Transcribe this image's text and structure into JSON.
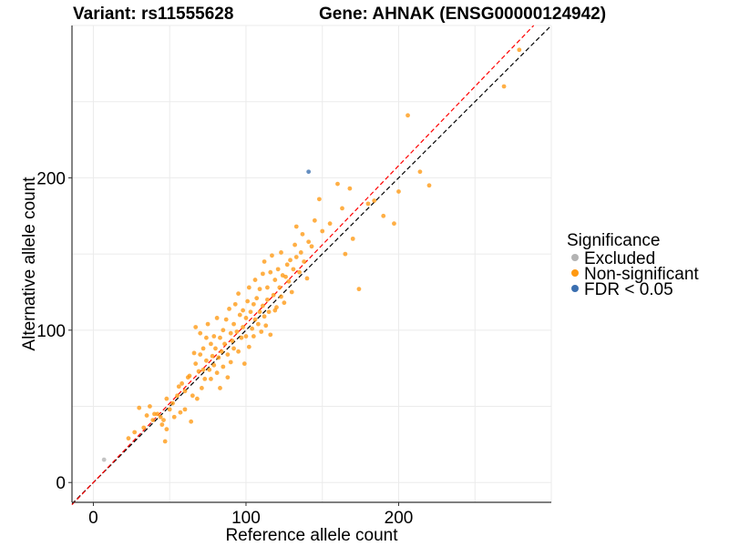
{
  "chart_data": {
    "type": "scatter",
    "title_left": "Variant: rs11555628",
    "title_right": "Gene: AHNAK (ENSG00000124942)",
    "xlabel": "Reference allele count",
    "ylabel": "Alternative allele count",
    "xlim": [
      -14,
      300
    ],
    "ylim": [
      -13,
      300
    ],
    "xticks": [
      0,
      100,
      200
    ],
    "yticks": [
      0,
      100,
      200
    ],
    "grid": true,
    "reference_lines": [
      {
        "name": "identity",
        "slope": 1.0,
        "color": "#000000",
        "style": "dashed"
      },
      {
        "name": "fit",
        "slope": 1.04,
        "color": "#ff0000",
        "style": "dashed"
      }
    ],
    "legend": {
      "title": "Significance",
      "position": "right",
      "entries": [
        {
          "label": "Excluded",
          "color": "#b3b3b3"
        },
        {
          "label": "Non-significant",
          "color": "#ff9911"
        },
        {
          "label": "FDR < 0.05",
          "color": "#3b6fb0"
        }
      ]
    },
    "series": [
      {
        "name": "Excluded",
        "color": "#b3b3b3",
        "points": [
          [
            7,
            15
          ]
        ]
      },
      {
        "name": "FDR < 0.05",
        "color": "#3b6fb0",
        "points": [
          [
            141,
            204
          ]
        ]
      },
      {
        "name": "Non-significant",
        "color": "#ff9911",
        "points": [
          [
            23,
            29
          ],
          [
            27,
            33
          ],
          [
            30,
            49
          ],
          [
            33,
            36
          ],
          [
            35,
            44
          ],
          [
            37,
            50
          ],
          [
            39,
            41
          ],
          [
            40,
            45
          ],
          [
            42,
            45
          ],
          [
            44,
            43
          ],
          [
            45,
            38
          ],
          [
            46,
            41
          ],
          [
            47,
            27
          ],
          [
            48,
            35
          ],
          [
            48,
            55
          ],
          [
            50,
            48
          ],
          [
            52,
            52
          ],
          [
            53,
            43
          ],
          [
            55,
            57
          ],
          [
            56,
            63
          ],
          [
            57,
            46
          ],
          [
            58,
            65
          ],
          [
            60,
            48
          ],
          [
            60,
            60
          ],
          [
            62,
            69
          ],
          [
            63,
            70
          ],
          [
            64,
            40
          ],
          [
            65,
            57
          ],
          [
            66,
            85
          ],
          [
            67,
            78
          ],
          [
            67,
            102
          ],
          [
            68,
            55
          ],
          [
            69,
            73
          ],
          [
            70,
            84
          ],
          [
            70,
            98
          ],
          [
            71,
            62
          ],
          [
            72,
            74
          ],
          [
            72,
            88
          ],
          [
            73,
            68
          ],
          [
            74,
            80
          ],
          [
            74,
            95
          ],
          [
            75,
            104
          ],
          [
            76,
            74
          ],
          [
            77,
            91
          ],
          [
            77,
            68
          ],
          [
            78,
            83
          ],
          [
            79,
            77
          ],
          [
            79,
            96
          ],
          [
            80,
            88
          ],
          [
            81,
            72
          ],
          [
            81,
            108
          ],
          [
            82,
            82
          ],
          [
            83,
            95
          ],
          [
            83,
            62
          ],
          [
            84,
            86
          ],
          [
            85,
            76
          ],
          [
            85,
            100
          ],
          [
            86,
            91
          ],
          [
            87,
            107
          ],
          [
            88,
            84
          ],
          [
            88,
            69
          ],
          [
            89,
            114
          ],
          [
            90,
            98
          ],
          [
            90,
            79
          ],
          [
            91,
            93
          ],
          [
            92,
            88
          ],
          [
            92,
            104
          ],
          [
            93,
            117
          ],
          [
            94,
            99
          ],
          [
            95,
            86
          ],
          [
            95,
            124
          ],
          [
            96,
            110
          ],
          [
            97,
            95
          ],
          [
            98,
            102
          ],
          [
            98,
            113
          ],
          [
            99,
            78
          ],
          [
            100,
            108
          ],
          [
            100,
            96
          ],
          [
            101,
            119
          ],
          [
            102,
            89
          ],
          [
            102,
            128
          ],
          [
            103,
            112
          ],
          [
            104,
            101
          ],
          [
            105,
            117
          ],
          [
            105,
            96
          ],
          [
            106,
            107
          ],
          [
            106,
            133
          ],
          [
            107,
            121
          ],
          [
            108,
            104
          ],
          [
            109,
            112
          ],
          [
            109,
            127
          ],
          [
            110,
            99
          ],
          [
            111,
            137
          ],
          [
            111,
            116
          ],
          [
            112,
            109
          ],
          [
            112,
            145
          ],
          [
            113,
            103
          ],
          [
            114,
            128
          ],
          [
            114,
            120
          ],
          [
            115,
            112
          ],
          [
            116,
            138
          ],
          [
            116,
            97
          ],
          [
            117,
            149
          ],
          [
            118,
            123
          ],
          [
            119,
            133
          ],
          [
            119,
            113
          ],
          [
            120,
            115
          ],
          [
            121,
            140
          ],
          [
            122,
            128
          ],
          [
            123,
            151
          ],
          [
            123,
            122
          ],
          [
            124,
            136
          ],
          [
            125,
            118
          ],
          [
            126,
            135
          ],
          [
            127,
            143
          ],
          [
            128,
            132
          ],
          [
            129,
            146
          ],
          [
            130,
            125
          ],
          [
            131,
            140
          ],
          [
            132,
            156
          ],
          [
            133,
            148
          ],
          [
            133,
            168
          ],
          [
            135,
            138
          ],
          [
            136,
            151
          ],
          [
            137,
            163
          ],
          [
            138,
            145
          ],
          [
            140,
            134
          ],
          [
            141,
            158
          ],
          [
            143,
            155
          ],
          [
            145,
            172
          ],
          [
            148,
            186
          ],
          [
            150,
            165
          ],
          [
            155,
            170
          ],
          [
            160,
            196
          ],
          [
            163,
            180
          ],
          [
            165,
            150
          ],
          [
            168,
            193
          ],
          [
            170,
            160
          ],
          [
            174,
            127
          ],
          [
            180,
            183
          ],
          [
            184,
            185
          ],
          [
            190,
            175
          ],
          [
            197,
            170
          ],
          [
            200,
            191
          ],
          [
            206,
            241
          ],
          [
            214,
            204
          ],
          [
            220,
            195
          ],
          [
            269,
            260
          ],
          [
            279,
            284
          ]
        ]
      }
    ]
  }
}
